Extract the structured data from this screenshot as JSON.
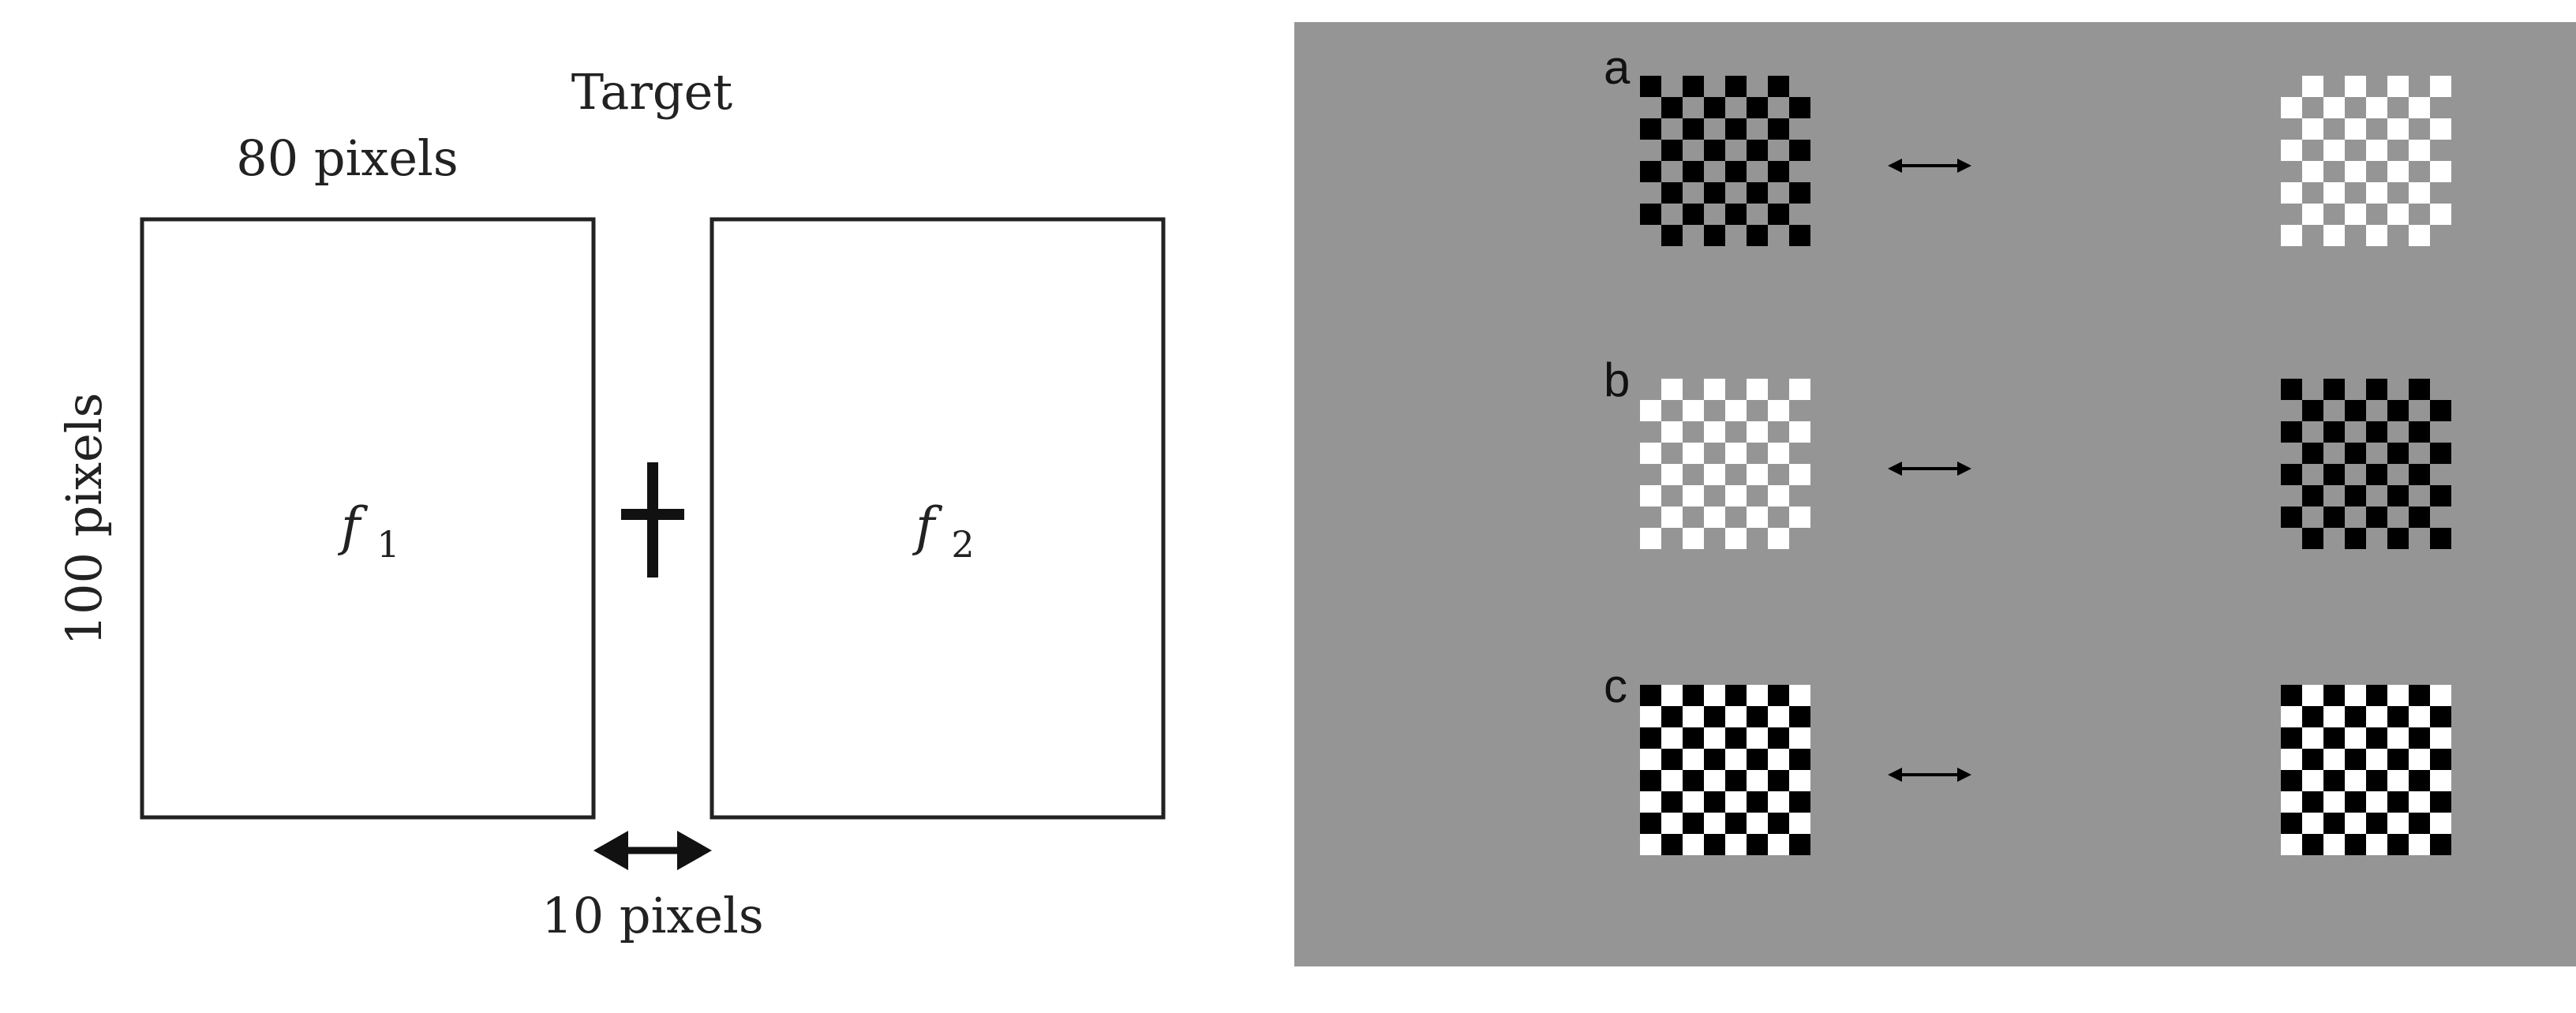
{
  "left_figure": {
    "title": "Target",
    "width_label": "80 pixels",
    "height_label": "100 pixels",
    "gap_label": "10 pixels",
    "frames": [
      {
        "name": "frame-f1",
        "symbol": "f",
        "subscript": "1"
      },
      {
        "name": "frame-f2",
        "symbol": "f",
        "subscript": "2"
      }
    ],
    "fixation_icon": "fixation-cross-icon",
    "gap_icon": "double-arrow-icon"
  },
  "right_figure": {
    "background_color": "#959595",
    "grid_size": 8,
    "arrow_icon": "double-arrow-icon",
    "rows": [
      {
        "label": "a",
        "left": {
          "dark": "#000000",
          "light": "#959595"
        },
        "right": {
          "dark": "#959595",
          "light": "#ffffff"
        }
      },
      {
        "label": "b",
        "left": {
          "dark": "#959595",
          "light": "#ffffff"
        },
        "right": {
          "dark": "#000000",
          "light": "#959595"
        }
      },
      {
        "label": "c",
        "left": {
          "dark": "#000000",
          "light": "#ffffff"
        },
        "right": {
          "dark": "#000000",
          "light": "#ffffff"
        }
      }
    ]
  }
}
